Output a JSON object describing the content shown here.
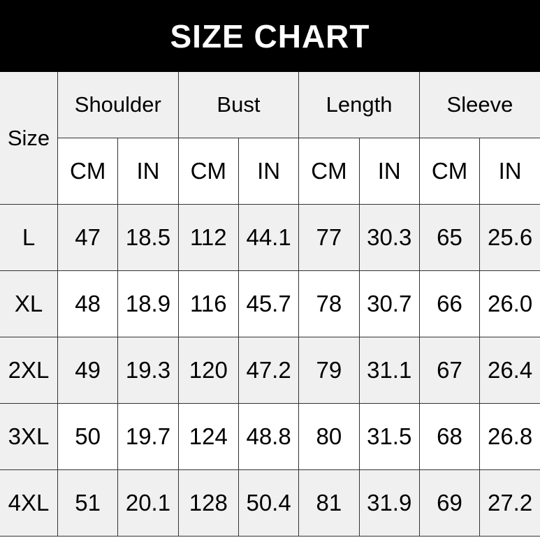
{
  "title": "SIZE CHART",
  "header": {
    "size_label": "Size",
    "groups": [
      "Shoulder",
      "Bust",
      "Length",
      "Sleeve"
    ],
    "units": [
      "CM",
      "IN",
      "CM",
      "IN",
      "CM",
      "IN",
      "CM",
      "IN"
    ]
  },
  "rows": [
    {
      "size": "L",
      "values": [
        "47",
        "18.5",
        "112",
        "44.1",
        "77",
        "30.3",
        "65",
        "25.6"
      ]
    },
    {
      "size": "XL",
      "values": [
        "48",
        "18.9",
        "116",
        "45.7",
        "78",
        "30.7",
        "66",
        "26.0"
      ]
    },
    {
      "size": "2XL",
      "values": [
        "49",
        "19.3",
        "120",
        "47.2",
        "79",
        "31.1",
        "67",
        "26.4"
      ]
    },
    {
      "size": "3XL",
      "values": [
        "50",
        "19.7",
        "124",
        "48.8",
        "80",
        "31.5",
        "68",
        "26.8"
      ]
    },
    {
      "size": "4XL",
      "values": [
        "51",
        "20.1",
        "128",
        "50.4",
        "81",
        "31.9",
        "69",
        "27.2"
      ]
    }
  ],
  "colors": {
    "title_bg": "#000000",
    "alt_row": "#f0f0f0"
  }
}
